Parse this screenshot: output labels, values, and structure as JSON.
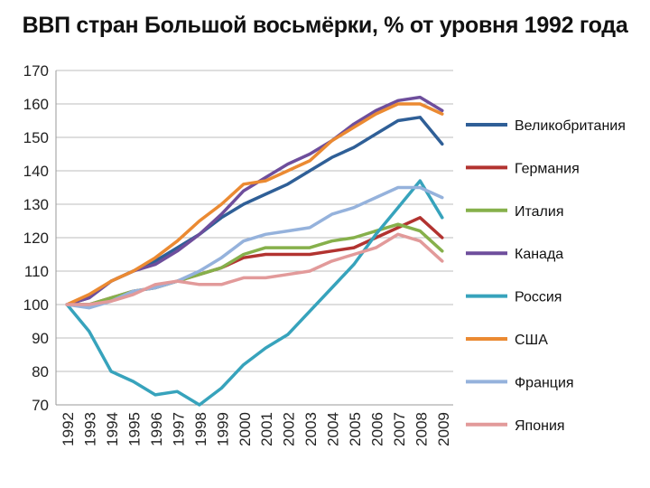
{
  "chart_data": {
    "type": "line",
    "title": "ВВП стран Большой восьмёрки, % от уровня 1992 года",
    "xlabel": "",
    "ylabel": "",
    "ylim": [
      70,
      170
    ],
    "ytick_step": 10,
    "grid": true,
    "legend_position": "right",
    "categories": [
      "1992",
      "1993",
      "1994",
      "1995",
      "1996",
      "1997",
      "1998",
      "1999",
      "2000",
      "2001",
      "2002",
      "2003",
      "2004",
      "2005",
      "2006",
      "2007",
      "2008",
      "2009"
    ],
    "series": [
      {
        "name": "Великобритания",
        "color": "#2f5f97",
        "values": [
          100,
          102,
          107,
          110,
          113,
          117,
          121,
          126,
          130,
          133,
          136,
          140,
          144,
          147,
          151,
          155,
          156,
          148
        ]
      },
      {
        "name": "Германия",
        "color": "#b23330",
        "values": [
          100,
          100,
          102,
          104,
          105,
          107,
          109,
          111,
          114,
          115,
          115,
          115,
          116,
          117,
          120,
          123,
          126,
          120
        ]
      },
      {
        "name": "Италия",
        "color": "#86b04b",
        "values": [
          100,
          100,
          102,
          104,
          105,
          107,
          109,
          111,
          115,
          117,
          117,
          117,
          119,
          120,
          122,
          124,
          122,
          116
        ]
      },
      {
        "name": "Канада",
        "color": "#6e4e9c",
        "values": [
          100,
          102,
          107,
          110,
          112,
          116,
          121,
          127,
          134,
          138,
          142,
          145,
          149,
          154,
          158,
          161,
          162,
          158
        ]
      },
      {
        "name": "Россия",
        "color": "#37a3bc",
        "values": [
          100,
          92,
          80,
          77,
          73,
          74,
          70,
          75,
          82,
          87,
          91,
          98,
          105,
          112,
          121,
          129,
          137,
          126
        ]
      },
      {
        "name": "США",
        "color": "#eb8a32",
        "values": [
          100,
          103,
          107,
          110,
          114,
          119,
          125,
          130,
          136,
          137,
          140,
          143,
          149,
          153,
          157,
          160,
          160,
          157
        ]
      },
      {
        "name": "Франция",
        "color": "#95b2dc",
        "values": [
          100,
          99,
          101,
          104,
          105,
          107,
          110,
          114,
          119,
          121,
          122,
          123,
          127,
          129,
          132,
          135,
          135,
          132
        ]
      },
      {
        "name": "Япония",
        "color": "#e29a9a",
        "values": [
          100,
          100,
          101,
          103,
          106,
          107,
          106,
          106,
          108,
          108,
          109,
          110,
          113,
          115,
          117,
          121,
          119,
          113
        ]
      }
    ]
  }
}
